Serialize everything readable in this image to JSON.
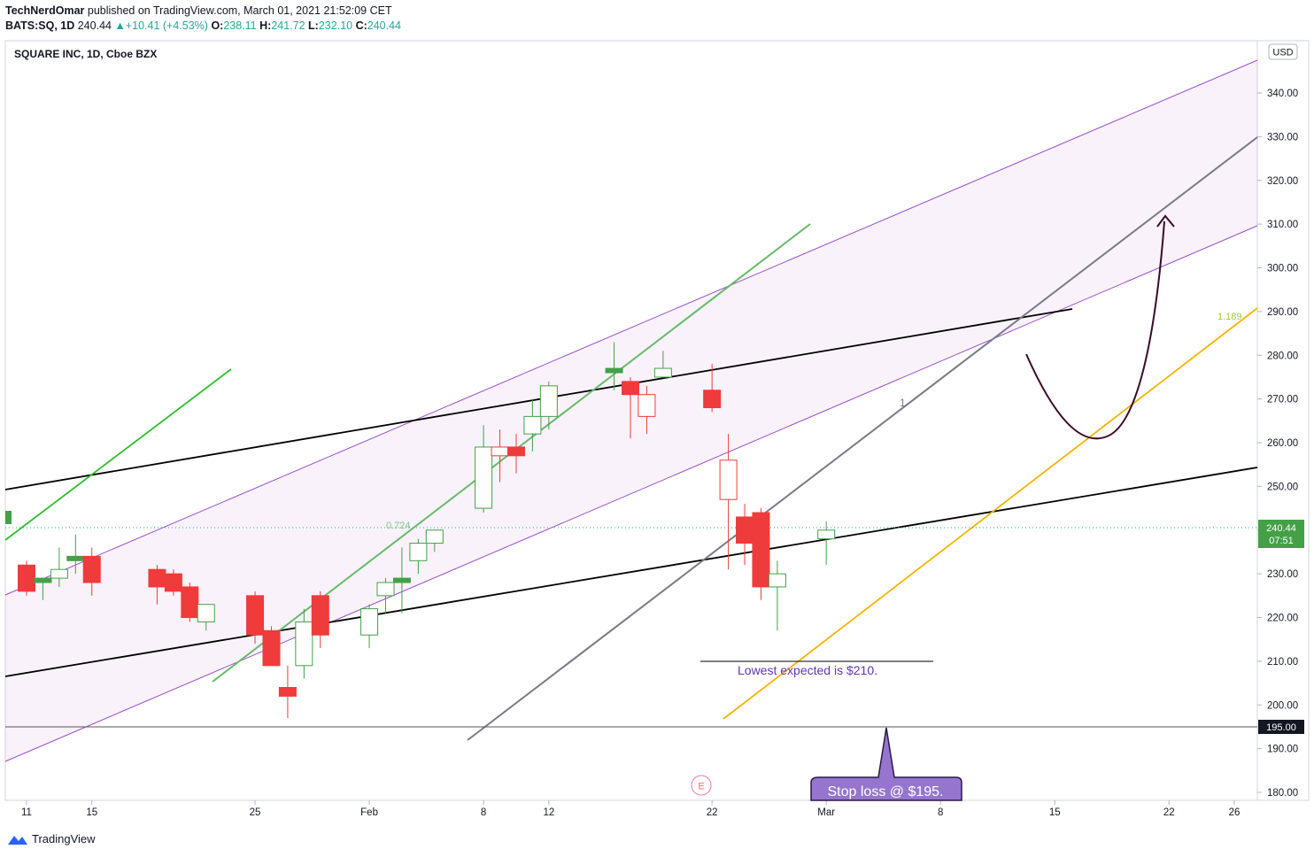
{
  "header": {
    "author": "TechNerdOmar",
    "published_text": " published on TradingView.com, March 01, 2021 21:52:09 CET",
    "symbol": "BATS:SQ, 1D",
    "last": "240.44",
    "change": "+10.41 (+4.53%)",
    "o_label": "O:",
    "o_value": "238.11",
    "h_label": "H:",
    "h_value": "241.72",
    "l_label": "L:",
    "l_value": "232.10",
    "c_label": "C:",
    "c_value": "240.44"
  },
  "footer": {
    "brand": "TradingView"
  },
  "chart_data": {
    "type": "candlestick",
    "title": "SQUARE INC, 1D, Cboe BZX",
    "currency": "USD",
    "ylim": [
      175,
      350
    ],
    "y_ticks": [
      180,
      190,
      200,
      210,
      220,
      230,
      240,
      250,
      260,
      270,
      280,
      290,
      300,
      310,
      320,
      330,
      340
    ],
    "x_ticks": [
      {
        "label": "11",
        "day": 0
      },
      {
        "label": "15",
        "day": 4
      },
      {
        "label": "25",
        "day": 14
      },
      {
        "label": "Feb",
        "day": 21
      },
      {
        "label": "8",
        "day": 28
      },
      {
        "label": "12",
        "day": 32
      },
      {
        "label": "22",
        "day": 42
      },
      {
        "label": "Mar",
        "day": 49
      },
      {
        "label": "8",
        "day": 56
      },
      {
        "label": "15",
        "day": 63
      },
      {
        "label": "22",
        "day": 70
      },
      {
        "label": "26",
        "day": 74
      }
    ],
    "candles": [
      {
        "date": "2021-01-11",
        "o": 226,
        "h": 233,
        "l": 225,
        "c": 232,
        "fill": "red"
      },
      {
        "date": "2021-01-12",
        "o": 228,
        "h": 229,
        "l": 224,
        "c": 229,
        "fill": "green"
      },
      {
        "date": "2021-01-13",
        "o": 229,
        "h": 236,
        "l": 227,
        "c": 231,
        "fill": "hollow-green"
      },
      {
        "date": "2021-01-14",
        "o": 233,
        "h": 239,
        "l": 230,
        "c": 234,
        "fill": "green"
      },
      {
        "date": "2021-01-15",
        "o": 234,
        "h": 236,
        "l": 225,
        "c": 228,
        "fill": "red"
      },
      {
        "date": "2021-01-19",
        "o": 231,
        "h": 232,
        "l": 223,
        "c": 227,
        "fill": "red"
      },
      {
        "date": "2021-01-20",
        "o": 230,
        "h": 231,
        "l": 225,
        "c": 226,
        "fill": "red"
      },
      {
        "date": "2021-01-21",
        "o": 227,
        "h": 228,
        "l": 219,
        "c": 220,
        "fill": "red"
      },
      {
        "date": "2021-01-22",
        "o": 219,
        "h": 223,
        "l": 217,
        "c": 223,
        "fill": "hollow-green"
      },
      {
        "date": "2021-01-25",
        "o": 225,
        "h": 226,
        "l": 214,
        "c": 216,
        "fill": "red"
      },
      {
        "date": "2021-01-26",
        "o": 217,
        "h": 218,
        "l": 210,
        "c": 209,
        "fill": "red"
      },
      {
        "date": "2021-01-27",
        "o": 204,
        "h": 209,
        "l": 197,
        "c": 202,
        "fill": "red"
      },
      {
        "date": "2021-01-28",
        "o": 209,
        "h": 222,
        "l": 206,
        "c": 219,
        "fill": "hollow-green"
      },
      {
        "date": "2021-01-29",
        "o": 225,
        "h": 226,
        "l": 213,
        "c": 216,
        "fill": "red"
      },
      {
        "date": "2021-02-01",
        "o": 216,
        "h": 223,
        "l": 213,
        "c": 222,
        "fill": "hollow-green"
      },
      {
        "date": "2021-02-02",
        "o": 225,
        "h": 229,
        "l": 221,
        "c": 228,
        "fill": "hollow-green"
      },
      {
        "date": "2021-02-03",
        "o": 229,
        "h": 236,
        "l": 221,
        "c": 228,
        "fill": "green"
      },
      {
        "date": "2021-02-04",
        "o": 233,
        "h": 238,
        "l": 230,
        "c": 237,
        "fill": "hollow-green"
      },
      {
        "date": "2021-02-05",
        "o": 237,
        "h": 240,
        "l": 235,
        "c": 240,
        "fill": "hollow-green"
      },
      {
        "date": "2021-02-08",
        "o": 245,
        "h": 264,
        "l": 244,
        "c": 259,
        "fill": "hollow-green"
      },
      {
        "date": "2021-02-09",
        "o": 259,
        "h": 263,
        "l": 251,
        "c": 257,
        "fill": "hollow-red"
      },
      {
        "date": "2021-02-10",
        "o": 259,
        "h": 262,
        "l": 253,
        "c": 257,
        "fill": "red"
      },
      {
        "date": "2021-02-11",
        "o": 262,
        "h": 270,
        "l": 258,
        "c": 266,
        "fill": "hollow-green"
      },
      {
        "date": "2021-02-12",
        "o": 266,
        "h": 274,
        "l": 263,
        "c": 273,
        "fill": "hollow-green"
      },
      {
        "date": "2021-02-16",
        "o": 277,
        "h": 283,
        "l": 272,
        "c": 276,
        "fill": "green"
      },
      {
        "date": "2021-02-17",
        "o": 274,
        "h": 275,
        "l": 261,
        "c": 271,
        "fill": "red"
      },
      {
        "date": "2021-02-18",
        "o": 271,
        "h": 273,
        "l": 262,
        "c": 266,
        "fill": "hollow-red"
      },
      {
        "date": "2021-02-19",
        "o": 277,
        "h": 281,
        "l": 275,
        "c": 275,
        "fill": "hollow-green"
      },
      {
        "date": "2021-02-22",
        "o": 272,
        "h": 278,
        "l": 267,
        "c": 268,
        "fill": "red"
      },
      {
        "date": "2021-02-23",
        "o": 256,
        "h": 262,
        "l": 231,
        "c": 247,
        "fill": "hollow-red"
      },
      {
        "date": "2021-02-24",
        "o": 243,
        "h": 246,
        "l": 232,
        "c": 237,
        "fill": "red"
      },
      {
        "date": "2021-02-25",
        "o": 244,
        "h": 245,
        "l": 224,
        "c": 227,
        "fill": "red"
      },
      {
        "date": "2021-02-26",
        "o": 227,
        "h": 233,
        "l": 217,
        "c": 230,
        "fill": "hollow-green"
      },
      {
        "date": "2021-03-01",
        "o": 238,
        "h": 242,
        "l": 232,
        "c": 240,
        "fill": "hollow-green"
      }
    ],
    "last_price": {
      "value": "240.44",
      "countdown": "07:51"
    },
    "level_label": {
      "value": "195.00"
    },
    "fib_labels": [
      {
        "text": "0.724"
      },
      {
        "text": "1.189"
      },
      {
        "text": "1"
      }
    ],
    "annotations": [
      {
        "text": "Lowest expected is $210."
      },
      {
        "text": "Stop loss @ $195."
      },
      {
        "text": "E"
      }
    ]
  }
}
